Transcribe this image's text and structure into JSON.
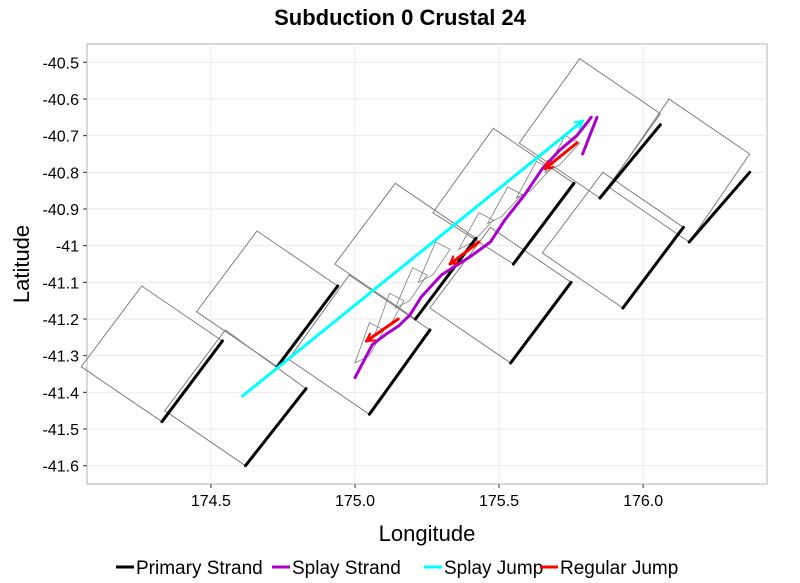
{
  "chart_data": {
    "type": "line",
    "title": "Subduction 0 Crustal 24",
    "xlabel": "Longitude",
    "ylabel": "Latitude",
    "xlim": [
      174.07,
      176.43
    ],
    "ylim": [
      -41.65,
      -40.45
    ],
    "x_ticks": [
      174.5,
      175.0,
      175.5,
      176.0
    ],
    "x_tick_labels": [
      "174.5",
      "175.0",
      "175.5",
      "176.0"
    ],
    "y_ticks": [
      -40.5,
      -40.6,
      -40.7,
      -40.8,
      -40.9,
      -41.0,
      -41.1,
      -41.2,
      -41.3,
      -41.4,
      -41.5,
      -41.6
    ],
    "y_tick_labels": [
      "-40.5",
      "-40.6",
      "-40.7",
      "-40.8",
      "-40.9",
      "-41",
      "-41.1",
      "-41.2",
      "-41.3",
      "-41.4",
      "-41.5",
      "-41.6"
    ],
    "grid": true,
    "legend_position": "bottom",
    "legend": [
      {
        "label": "Primary Strand",
        "color": "#000000"
      },
      {
        "label": "Splay Strand",
        "color": "#aa00cc"
      },
      {
        "label": "Splay Jump",
        "color": "#00ffff"
      },
      {
        "label": "Regular Jump",
        "color": "#ff0000"
      }
    ],
    "fault_patches": [
      [
        [
          174.33,
          -41.48
        ],
        [
          174.05,
          -41.33
        ],
        [
          174.26,
          -41.11
        ],
        [
          174.54,
          -41.26
        ]
      ],
      [
        [
          174.62,
          -41.6
        ],
        [
          174.34,
          -41.45
        ],
        [
          174.55,
          -41.23
        ],
        [
          174.83,
          -41.39
        ]
      ],
      [
        [
          174.73,
          -41.33
        ],
        [
          174.45,
          -41.18
        ],
        [
          174.66,
          -40.96
        ],
        [
          174.94,
          -41.11
        ]
      ],
      [
        [
          175.05,
          -41.46
        ],
        [
          174.77,
          -41.31
        ],
        [
          174.98,
          -41.08
        ],
        [
          175.26,
          -41.23
        ]
      ],
      [
        [
          175.21,
          -41.2
        ],
        [
          174.93,
          -41.05
        ],
        [
          175.14,
          -40.83
        ],
        [
          175.42,
          -40.98
        ]
      ],
      [
        [
          175.54,
          -41.32
        ],
        [
          175.26,
          -41.17
        ],
        [
          175.47,
          -40.95
        ],
        [
          175.75,
          -41.1
        ]
      ],
      [
        [
          175.55,
          -41.05
        ],
        [
          175.27,
          -40.91
        ],
        [
          175.48,
          -40.68
        ],
        [
          175.76,
          -40.83
        ]
      ],
      [
        [
          175.93,
          -41.17
        ],
        [
          175.65,
          -41.02
        ],
        [
          175.86,
          -40.8
        ],
        [
          176.14,
          -40.95
        ]
      ],
      [
        [
          175.85,
          -40.87
        ],
        [
          175.57,
          -40.72
        ],
        [
          175.78,
          -40.49
        ],
        [
          176.06,
          -40.64
        ]
      ],
      [
        [
          176.16,
          -40.99
        ],
        [
          175.88,
          -40.84
        ],
        [
          176.09,
          -40.6
        ],
        [
          176.37,
          -40.75
        ]
      ]
    ],
    "small_patches": [
      [
        [
          175.0,
          -41.32
        ],
        [
          175.05,
          -41.3
        ],
        [
          175.1,
          -41.23
        ],
        [
          175.05,
          -41.21
        ]
      ],
      [
        [
          175.07,
          -41.24
        ],
        [
          175.12,
          -41.22
        ],
        [
          175.17,
          -41.15
        ],
        [
          175.12,
          -41.13
        ]
      ],
      [
        [
          175.14,
          -41.17
        ],
        [
          175.19,
          -41.15
        ],
        [
          175.25,
          -41.08
        ],
        [
          175.2,
          -41.06
        ]
      ],
      [
        [
          175.22,
          -41.1
        ],
        [
          175.27,
          -41.08
        ],
        [
          175.33,
          -41.01
        ],
        [
          175.28,
          -40.99
        ]
      ],
      [
        [
          175.36,
          -41.01
        ],
        [
          175.41,
          -40.99
        ],
        [
          175.48,
          -40.93
        ],
        [
          175.43,
          -40.91
        ]
      ],
      [
        [
          175.46,
          -40.94
        ],
        [
          175.51,
          -40.92
        ],
        [
          175.58,
          -40.86
        ],
        [
          175.53,
          -40.84
        ]
      ],
      [
        [
          175.56,
          -40.87
        ],
        [
          175.61,
          -40.85
        ],
        [
          175.68,
          -40.79
        ],
        [
          175.63,
          -40.77
        ]
      ],
      [
        [
          175.66,
          -40.8
        ],
        [
          175.71,
          -40.78
        ],
        [
          175.78,
          -40.72
        ],
        [
          175.73,
          -40.7
        ]
      ]
    ],
    "series": [
      {
        "name": "Primary Strand",
        "color": "#000000",
        "segments": [
          [
            [
              174.33,
              -41.48
            ],
            [
              174.54,
              -41.26
            ]
          ],
          [
            [
              174.62,
              -41.6
            ],
            [
              174.83,
              -41.39
            ]
          ],
          [
            [
              174.73,
              -41.33
            ],
            [
              174.94,
              -41.11
            ]
          ],
          [
            [
              175.05,
              -41.46
            ],
            [
              175.26,
              -41.23
            ]
          ],
          [
            [
              175.21,
              -41.2
            ],
            [
              175.42,
              -40.98
            ]
          ],
          [
            [
              175.54,
              -41.32
            ],
            [
              175.75,
              -41.1
            ]
          ],
          [
            [
              175.55,
              -41.05
            ],
            [
              175.76,
              -40.83
            ]
          ],
          [
            [
              175.93,
              -41.17
            ],
            [
              176.14,
              -40.95
            ]
          ],
          [
            [
              175.85,
              -40.87
            ],
            [
              176.06,
              -40.67
            ]
          ],
          [
            [
              176.16,
              -40.99
            ],
            [
              176.37,
              -40.8
            ]
          ]
        ]
      },
      {
        "name": "Splay Strand",
        "color": "#aa00cc",
        "segments": [
          [
            [
              175.0,
              -41.36
            ],
            [
              175.06,
              -41.27
            ],
            [
              175.11,
              -41.24
            ],
            [
              175.15,
              -41.22
            ],
            [
              175.19,
              -41.19
            ],
            [
              175.23,
              -41.14
            ],
            [
              175.3,
              -41.08
            ],
            [
              175.4,
              -41.03
            ],
            [
              175.47,
              -40.99
            ],
            [
              175.52,
              -40.93
            ],
            [
              175.59,
              -40.86
            ],
            [
              175.65,
              -40.79
            ],
            [
              175.71,
              -40.74
            ],
            [
              175.77,
              -40.7
            ],
            [
              175.8,
              -40.67
            ],
            [
              175.82,
              -40.65
            ]
          ],
          [
            [
              175.79,
              -40.75
            ],
            [
              175.82,
              -40.69
            ],
            [
              175.84,
              -40.65
            ]
          ]
        ]
      },
      {
        "name": "Splay Jump",
        "color": "#00ffff",
        "segments": [
          [
            [
              174.61,
              -41.41
            ],
            [
              175.79,
              -40.66
            ]
          ]
        ]
      },
      {
        "name": "Regular Jump",
        "color": "#ff0000",
        "segments": [
          [
            [
              175.77,
              -40.72
            ],
            [
              175.66,
              -40.79
            ]
          ],
          [
            [
              175.43,
              -40.99
            ],
            [
              175.33,
              -41.05
            ]
          ],
          [
            [
              175.15,
              -41.2
            ],
            [
              175.04,
              -41.26
            ]
          ]
        ]
      }
    ]
  }
}
